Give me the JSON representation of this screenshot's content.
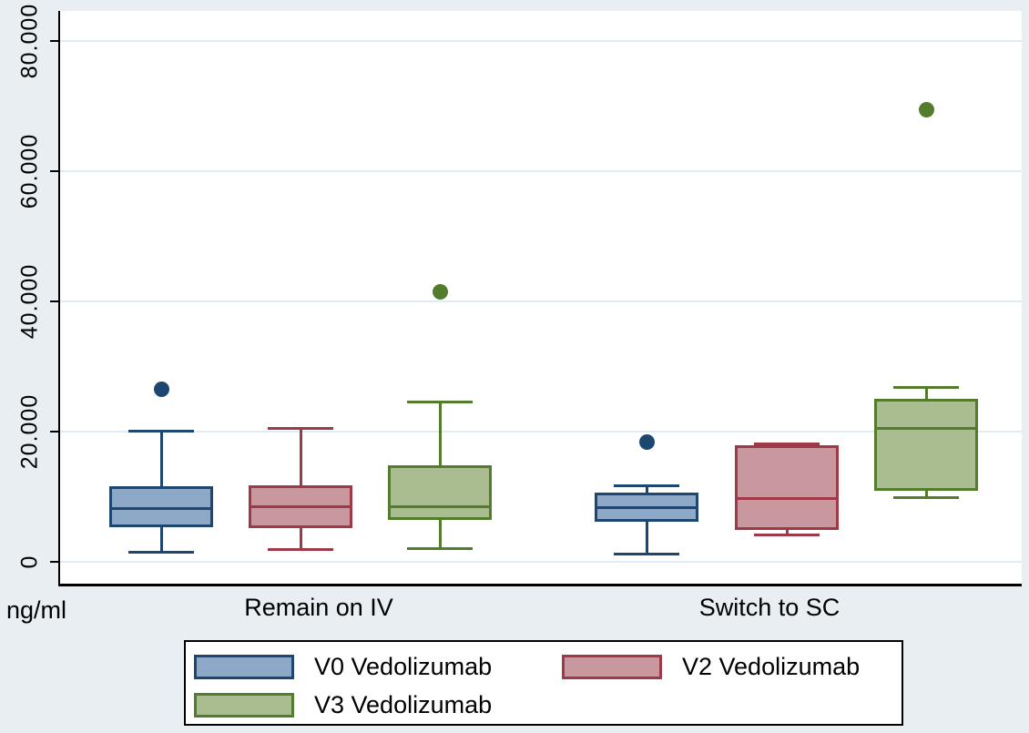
{
  "figure": {
    "background_color": "#e8eef2",
    "plot_background_color": "#ffffff",
    "gridline_color": "#dfecf5",
    "axis_color": "#000000"
  },
  "y_axis": {
    "unit_label": "ng/ml",
    "ticks": [
      {
        "value": 0,
        "label": "0"
      },
      {
        "value": 20000,
        "label": "20.000"
      },
      {
        "value": 40000,
        "label": "40.000"
      },
      {
        "value": 60000,
        "label": "60.000"
      },
      {
        "value": 80000,
        "label": "80.000"
      }
    ]
  },
  "x_axis": {
    "labels": [
      "Remain on IV",
      "Switch to SC"
    ]
  },
  "legend": {
    "items": [
      {
        "label": "V0 Vedolizumab"
      },
      {
        "label": "V2 Vedolizumab"
      },
      {
        "label": "V3 Vedolizumab"
      }
    ]
  },
  "chart_data": {
    "type": "boxplot",
    "title": "",
    "ylabel": "ng/ml",
    "ylim": [
      0,
      86000
    ],
    "grid": true,
    "legend_position": "bottom",
    "groups": [
      "Remain on IV",
      "Switch to SC"
    ],
    "series": [
      {
        "name": "V0 Vedolizumab",
        "fill": "#8ea8c7",
        "stroke": "#1d4770",
        "boxes": [
          {
            "group": "Remain on IV",
            "whisker_low": 1400,
            "q1": 5200,
            "median": 8100,
            "q3": 11600,
            "whisker_high": 20000,
            "outliers": [
              26500
            ]
          },
          {
            "group": "Switch to SC",
            "whisker_low": 1100,
            "q1": 6100,
            "median": 8300,
            "q3": 10600,
            "whisker_high": 11600,
            "outliers": [
              18400
            ]
          }
        ]
      },
      {
        "name": "V2 Vedolizumab",
        "fill": "#c9989f",
        "stroke": "#9e3a48",
        "boxes": [
          {
            "group": "Remain on IV",
            "whisker_low": 1800,
            "q1": 5100,
            "median": 8400,
            "q3": 11700,
            "whisker_high": 20500,
            "outliers": []
          },
          {
            "group": "Switch to SC",
            "whisker_low": 4000,
            "q1": 4800,
            "median": 9700,
            "q3": 17800,
            "whisker_high": 18100,
            "outliers": []
          }
        ]
      },
      {
        "name": "V3 Vedolizumab",
        "fill": "#aabd91",
        "stroke": "#537c2c",
        "boxes": [
          {
            "group": "Remain on IV",
            "whisker_low": 1900,
            "q1": 6300,
            "median": 8400,
            "q3": 14700,
            "whisker_high": 24500,
            "outliers": [
              41500
            ]
          },
          {
            "group": "Switch to SC",
            "whisker_low": 9800,
            "q1": 10900,
            "median": 20400,
            "q3": 25000,
            "whisker_high": 26800,
            "outliers": [
              69500
            ]
          }
        ]
      }
    ]
  }
}
